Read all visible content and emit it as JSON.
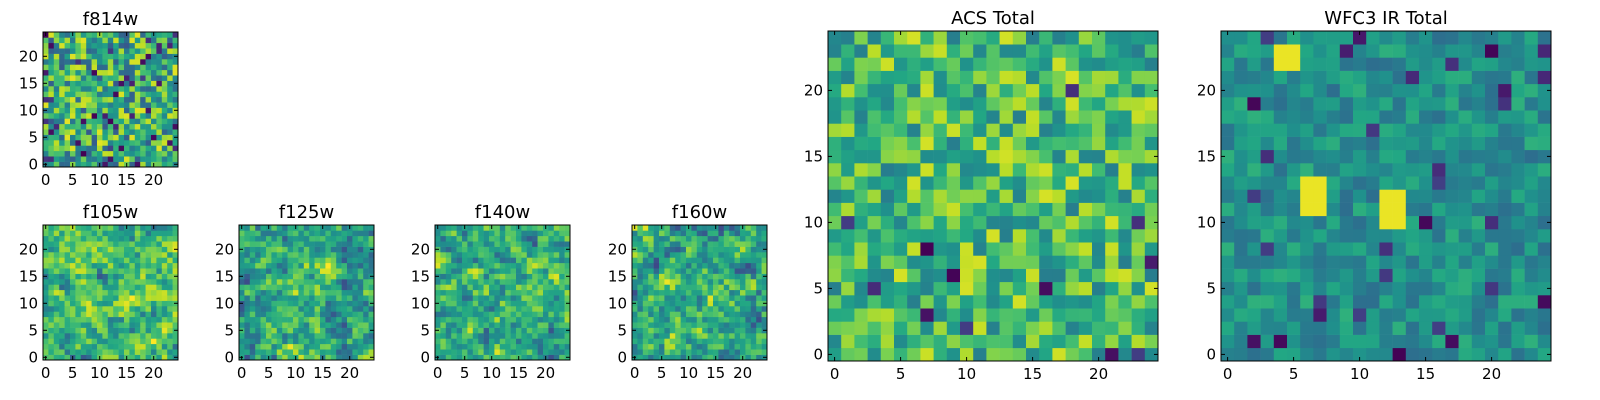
{
  "chart_data": [
    {
      "type": "heatmap",
      "title": "f814w",
      "xticks": [
        "0",
        "5",
        "10",
        "15",
        "20"
      ],
      "yticks": [
        "0",
        "5",
        "10",
        "15",
        "20"
      ],
      "xlim": [
        -0.5,
        24.5
      ],
      "ylim": [
        -0.5,
        24.5
      ],
      "grid_size": 25,
      "colormap": "viridis",
      "seed": 11,
      "bias": 0.62,
      "spread": 0.34,
      "clump": 0,
      "dark_spots": 0.07,
      "z_description": "per-pixel intensity, approximate (normalized 0-1)"
    },
    {
      "type": "heatmap",
      "title": "f105w",
      "xticks": [
        "0",
        "5",
        "10",
        "15",
        "20"
      ],
      "yticks": [
        "0",
        "5",
        "10",
        "15",
        "20"
      ],
      "xlim": [
        -0.5,
        24.5
      ],
      "ylim": [
        -0.5,
        24.5
      ],
      "grid_size": 25,
      "colormap": "viridis",
      "seed": 23,
      "bias": 0.72,
      "spread": 0.32,
      "clump": 1,
      "dark_spots": 0.04,
      "z_description": "per-pixel intensity, approximate (normalized 0-1)"
    },
    {
      "type": "heatmap",
      "title": "f125w",
      "xticks": [
        "0",
        "5",
        "10",
        "15",
        "20"
      ],
      "yticks": [
        "0",
        "5",
        "10",
        "15",
        "20"
      ],
      "xlim": [
        -0.5,
        24.5
      ],
      "ylim": [
        -0.5,
        24.5
      ],
      "grid_size": 25,
      "colormap": "viridis",
      "seed": 37,
      "bias": 0.62,
      "spread": 0.4,
      "clump": 1,
      "dark_spots": 0.06,
      "z_description": "per-pixel intensity, approximate (normalized 0-1)"
    },
    {
      "type": "heatmap",
      "title": "f140w",
      "xticks": [
        "0",
        "5",
        "10",
        "15",
        "20"
      ],
      "yticks": [
        "0",
        "5",
        "10",
        "15",
        "20"
      ],
      "xlim": [
        -0.5,
        24.5
      ],
      "ylim": [
        -0.5,
        24.5
      ],
      "grid_size": 25,
      "colormap": "viridis",
      "seed": 51,
      "bias": 0.64,
      "spread": 0.4,
      "clump": 1,
      "dark_spots": 0.06,
      "z_description": "per-pixel intensity, approximate (normalized 0-1)"
    },
    {
      "type": "heatmap",
      "title": "f160w",
      "xticks": [
        "0",
        "5",
        "10",
        "15",
        "20"
      ],
      "yticks": [
        "0",
        "5",
        "10",
        "15",
        "20"
      ],
      "xlim": [
        -0.5,
        24.5
      ],
      "ylim": [
        -0.5,
        24.5
      ],
      "grid_size": 25,
      "colormap": "viridis",
      "seed": 67,
      "bias": 0.66,
      "spread": 0.4,
      "clump": 1,
      "dark_spots": 0.06,
      "z_description": "per-pixel intensity, approximate (normalized 0-1)"
    },
    {
      "type": "heatmap",
      "title": "ACS Total",
      "xticks": [
        "0",
        "5",
        "10",
        "15",
        "20"
      ],
      "yticks": [
        "0",
        "5",
        "10",
        "15",
        "20"
      ],
      "xlim": [
        -0.5,
        24.5
      ],
      "ylim": [
        -0.5,
        24.5
      ],
      "grid_size": 25,
      "colormap": "viridis",
      "seed": 83,
      "bias": 0.68,
      "spread": 0.26,
      "clump": 0,
      "dark_spots": 0.02,
      "z_description": "per-pixel intensity, approximate (normalized 0-1)"
    },
    {
      "type": "heatmap",
      "title": "WFC3 IR Total",
      "xticks": [
        "0",
        "5",
        "10",
        "15",
        "20"
      ],
      "yticks": [
        "0",
        "5",
        "10",
        "15",
        "20"
      ],
      "xlim": [
        -0.5,
        24.5
      ],
      "ylim": [
        -0.5,
        24.5
      ],
      "grid_size": 25,
      "colormap": "viridis",
      "seed": 97,
      "bias": 0.5,
      "spread": 0.14,
      "clump": 0,
      "dark_spots": 0.05,
      "bright_blocks": true,
      "z_description": "per-pixel intensity, approximate (normalized 0-1)"
    }
  ]
}
